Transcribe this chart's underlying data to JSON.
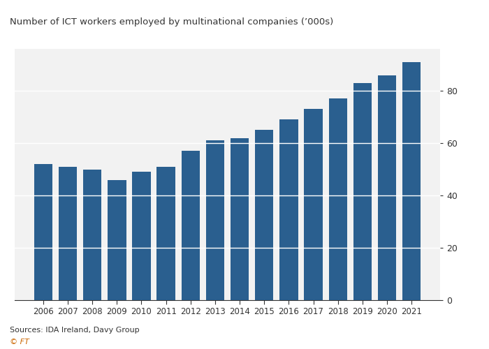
{
  "title": "Number of ICT workers employed by multinational companies (’000s)",
  "years": [
    2006,
    2007,
    2008,
    2009,
    2010,
    2011,
    2012,
    2013,
    2014,
    2015,
    2016,
    2017,
    2018,
    2019,
    2020,
    2021
  ],
  "values": [
    52,
    51,
    50,
    46,
    49,
    51,
    57,
    61,
    62,
    65,
    69,
    73,
    77,
    83,
    86,
    91
  ],
  "bar_color": "#2a5f8f",
  "background_color": "#ffffff",
  "plot_bg_color": "#f2f2f2",
  "text_color": "#333333",
  "grid_color": "#ffffff",
  "yticks": [
    0,
    20,
    40,
    60,
    80
  ],
  "ylim": [
    0,
    96
  ],
  "source_text": "Sources: IDA Ireland, Davy Group",
  "ft_text": "© FT"
}
